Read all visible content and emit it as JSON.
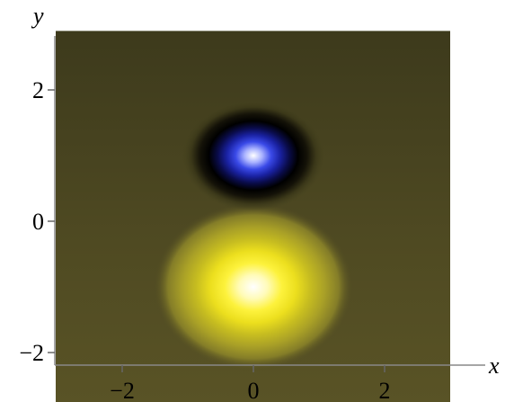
{
  "chart_data": {
    "type": "heatmap",
    "xlabel": "x",
    "ylabel": "y",
    "xlim": [
      -3,
      3
    ],
    "ylim": [
      -3,
      2.9
    ],
    "x_ticks": [
      {
        "value": -2,
        "label": "−2"
      },
      {
        "value": 0,
        "label": "0"
      },
      {
        "value": 2,
        "label": "2"
      }
    ],
    "y_ticks": [
      {
        "value": 2,
        "label": "2"
      },
      {
        "value": 0,
        "label": "0"
      },
      {
        "value": -2,
        "label": "−2"
      }
    ],
    "features": [
      {
        "kind": "peak",
        "center": [
          0,
          -1
        ],
        "spread": [
          1.05,
          0.88
        ],
        "color_ramp": [
          "#ffffff",
          "#fffbb8",
          "#fdf23c",
          "#ecdf1e",
          "#c7bd20",
          "#a9a027",
          "#847d28",
          "#4f4a22"
        ]
      },
      {
        "kind": "trough",
        "center": [
          0,
          1
        ],
        "spread": [
          0.75,
          0.58
        ],
        "color_ramp": [
          "#ffffff",
          "#a9b2ff",
          "#3a4ae8",
          "#1a22a3",
          "#0a0c4a",
          "#000000",
          "#141208",
          "#3b3819",
          "#45421e"
        ]
      }
    ],
    "background_color": "#4f4a22",
    "grid": false
  }
}
